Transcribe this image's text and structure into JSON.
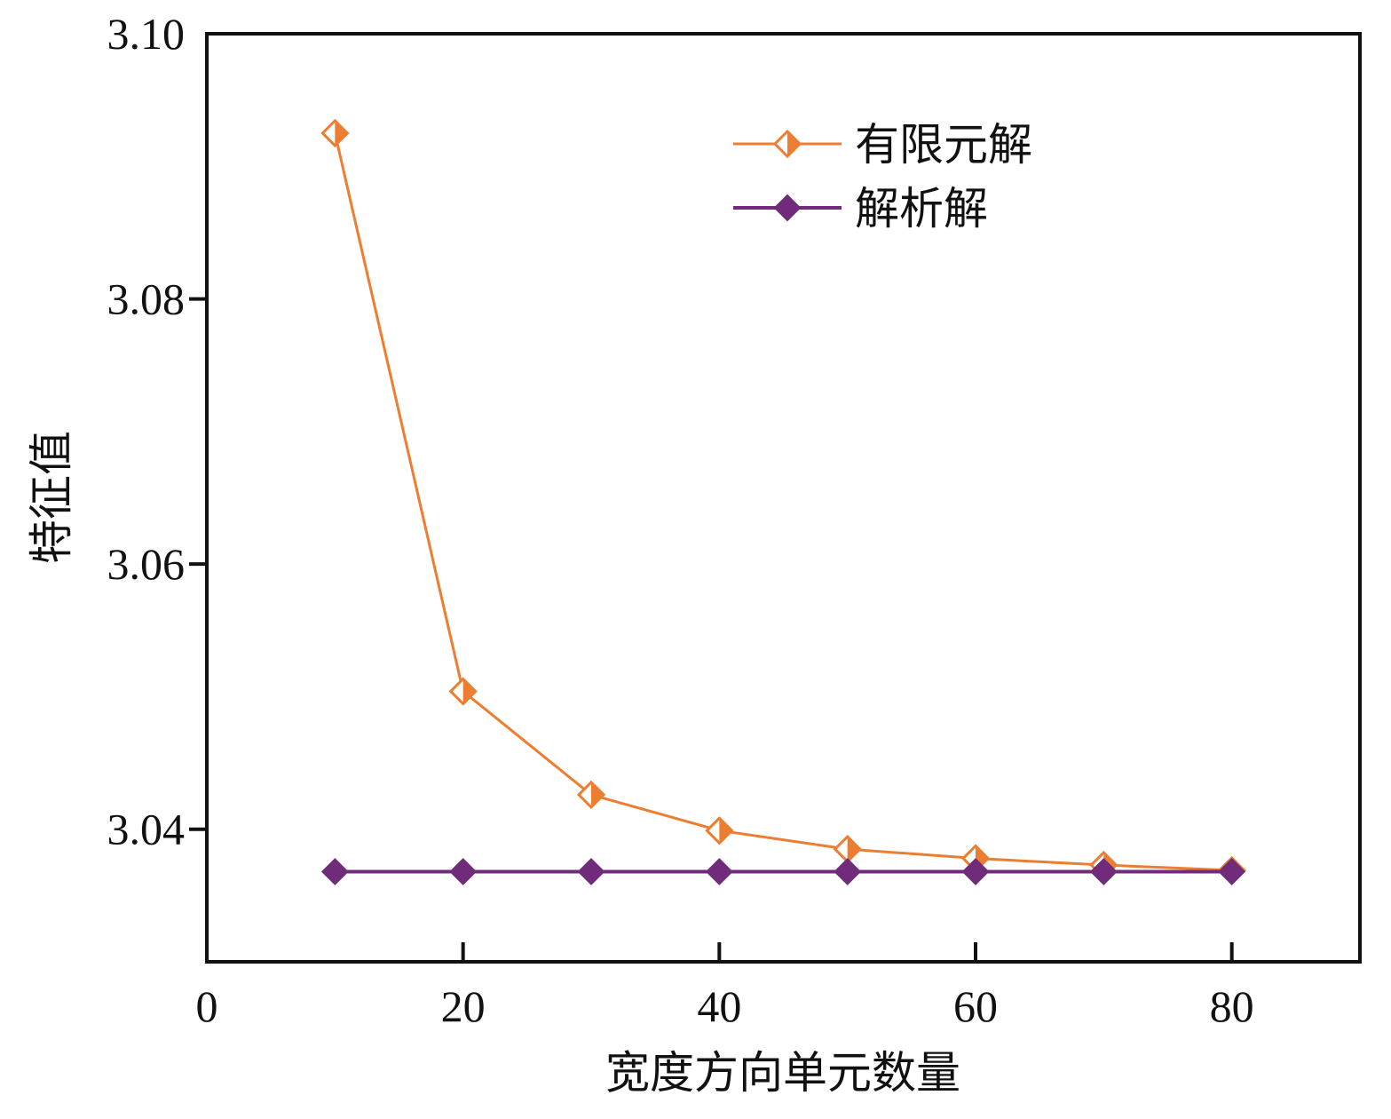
{
  "chart_data": {
    "type": "line",
    "title": "",
    "xlabel": "宽度方向单元数量",
    "ylabel": "特征值",
    "xlim": [
      0,
      90
    ],
    "ylim": [
      3.03,
      3.1
    ],
    "xticks": [
      0,
      20,
      40,
      60,
      80
    ],
    "xtick_labels": [
      "0",
      "20",
      "40",
      "60",
      "80"
    ],
    "yticks": [
      3.04,
      3.06,
      3.08,
      3.1
    ],
    "ytick_labels": [
      "3.04",
      "3.06",
      "3.08",
      "3.10"
    ],
    "grid": false,
    "legend_position": "top-right",
    "x": [
      10,
      20,
      30,
      40,
      50,
      60,
      70,
      80
    ],
    "series": [
      {
        "name": "有限元解",
        "color": "#ED7D31",
        "marker": "half-filled-diamond",
        "values": [
          3.0925,
          3.0504,
          3.0426,
          3.0399,
          3.0385,
          3.0378,
          3.0373,
          3.0369
        ]
      },
      {
        "name": "解析解",
        "color": "#702B7A",
        "marker": "filled-diamond",
        "values": [
          3.0368,
          3.0368,
          3.0368,
          3.0368,
          3.0368,
          3.0368,
          3.0368,
          3.0368
        ]
      }
    ]
  }
}
